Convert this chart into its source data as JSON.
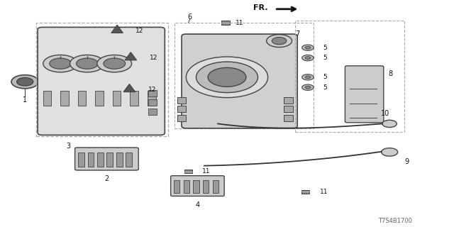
{
  "bg_color": "#ffffff",
  "part_number": "T7S4B1700",
  "fr_label": "FR.",
  "line_color": "#444444",
  "dashed_color": "#aaaaaa",
  "text_color": "#111111",
  "arrow_color": "#111111"
}
